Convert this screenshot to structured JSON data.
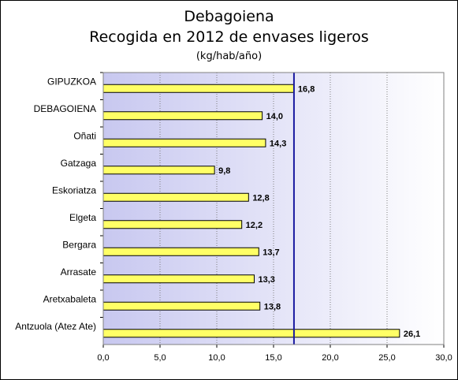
{
  "chart_data": {
    "type": "bar",
    "orientation": "horizontal",
    "title": "Debagoiena",
    "subtitle": "Recogida en 2012 de envases ligeros",
    "unit": "(kg/hab/año)",
    "categories": [
      "GIPUZKOA",
      "DEBAGOIENA",
      "Oñati",
      "Gatzaga",
      "Eskoriatza",
      "Elgeta",
      "Bergara",
      "Arrasate",
      "Aretxabaleta",
      "Antzuola (Atez Ate)"
    ],
    "values": [
      16.8,
      14.0,
      14.3,
      9.8,
      12.8,
      12.2,
      13.7,
      13.3,
      13.8,
      26.1
    ],
    "value_labels": [
      "16,8",
      "14,0",
      "14,3",
      "9,8",
      "12,8",
      "12,2",
      "13,7",
      "13,3",
      "13,8",
      "26,1"
    ],
    "reference_line": 16.8,
    "xlim": [
      0,
      30
    ],
    "xticks": [
      0,
      5,
      10,
      15,
      20,
      25,
      30
    ],
    "xtick_labels": [
      "0,0",
      "5,0",
      "10,0",
      "15,0",
      "20,0",
      "25,0",
      "30,0"
    ],
    "xlabel": "",
    "ylabel": "",
    "grid": true,
    "legend": "none",
    "colors": {
      "bar_fill": "#ffff66",
      "bar_stroke": "#000000",
      "plot_bg_left": "#c8c8f0",
      "plot_bg_right": "#ffffff",
      "reference_line": "#1a1aa0",
      "gridline": "#808080"
    }
  }
}
